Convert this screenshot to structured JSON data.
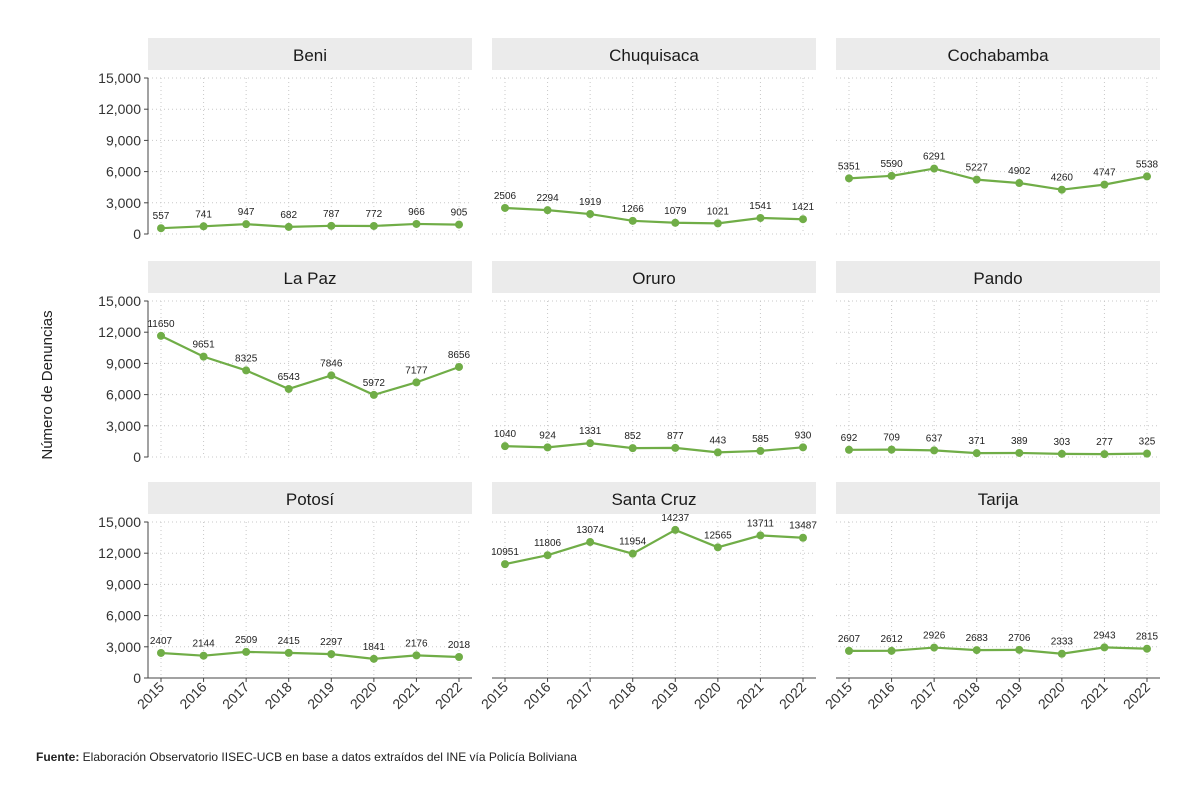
{
  "chart_data": {
    "type": "line",
    "ylabel": "Número de Denuncias",
    "x": [
      "2015",
      "2016",
      "2017",
      "2018",
      "2019",
      "2020",
      "2021",
      "2022"
    ],
    "yticks": [
      "0",
      "3,000",
      "6,000",
      "9,000",
      "12,000",
      "15,000"
    ],
    "ylim": [
      0,
      15000
    ],
    "grid": true,
    "line_color": "#70ad47",
    "panels": [
      {
        "name": "Beni",
        "values": [
          557,
          741,
          947,
          682,
          787,
          772,
          966,
          905
        ]
      },
      {
        "name": "Chuquisaca",
        "values": [
          2506,
          2294,
          1919,
          1266,
          1079,
          1021,
          1541,
          1421
        ]
      },
      {
        "name": "Cochabamba",
        "values": [
          5351,
          5590,
          6291,
          5227,
          4902,
          4260,
          4747,
          5538
        ]
      },
      {
        "name": "La Paz",
        "values": [
          11650,
          9651,
          8325,
          6543,
          7846,
          5972,
          7177,
          8656
        ]
      },
      {
        "name": "Oruro",
        "values": [
          1040,
          924,
          1331,
          852,
          877,
          443,
          585,
          930
        ]
      },
      {
        "name": "Pando",
        "values": [
          692,
          709,
          637,
          371,
          389,
          303,
          277,
          325
        ]
      },
      {
        "name": "Potosí",
        "values": [
          2407,
          2144,
          2509,
          2415,
          2297,
          1841,
          2176,
          2018
        ]
      },
      {
        "name": "Santa Cruz",
        "values": [
          10951,
          11806,
          13074,
          11954,
          14237,
          12565,
          13711,
          13487
        ]
      },
      {
        "name": "Tarija",
        "values": [
          2607,
          2612,
          2926,
          2683,
          2706,
          2333,
          2943,
          2815
        ]
      }
    ]
  },
  "footer": {
    "label": "Fuente:",
    "text": " Elaboración Observatorio IISEC-UCB en base a datos  extraídos del INE vía Policía Boliviana"
  }
}
